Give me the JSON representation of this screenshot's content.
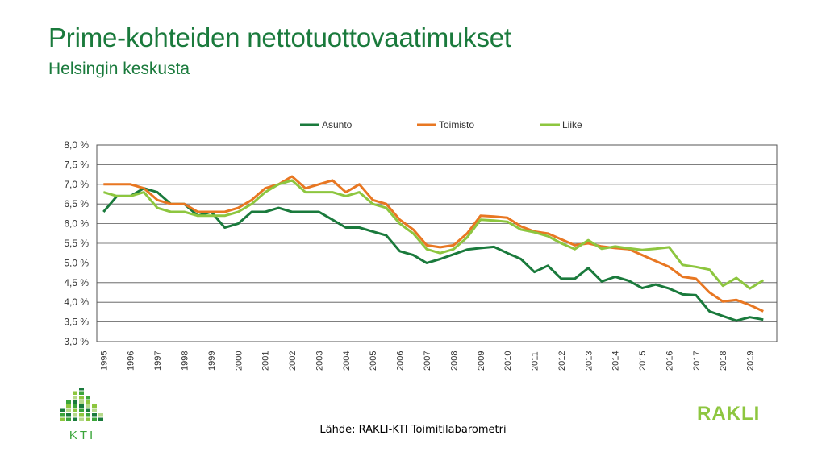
{
  "title": "Prime-kohteiden nettotuottovaatimukset",
  "subtitle": "Helsingin keskusta",
  "source": "Lähde: RAKLI-KTI Toimitilabarometri",
  "logos": {
    "kti": "KTI",
    "rakli": "RAKLI"
  },
  "chart_data": {
    "type": "line",
    "title": "",
    "xlabel": "",
    "ylabel": "",
    "ylim": [
      3.0,
      8.0
    ],
    "yticks": [
      "8,0 %",
      "7,5 %",
      "7,0 %",
      "6,5 %",
      "6,0 %",
      "5,5 %",
      "5,0 %",
      "4,5 %",
      "4,0 %",
      "3,5 %",
      "3,0 %"
    ],
    "x_tick_labels": [
      "1995",
      "1996",
      "1997",
      "1998",
      "1999",
      "2000",
      "2001",
      "2002",
      "2003",
      "2004",
      "2005",
      "2006",
      "2007",
      "2008",
      "2009",
      "2010",
      "2011",
      "2012",
      "2013",
      "2014",
      "2015",
      "2016",
      "2017",
      "2018",
      "2019"
    ],
    "x_start": 1995.0,
    "x_step": 0.5,
    "grid": "horizontal",
    "legend_position": "top",
    "series": [
      {
        "name": "Asunto",
        "color": "#1a7a3c",
        "values": [
          6.3,
          6.7,
          6.7,
          6.9,
          6.8,
          6.5,
          6.5,
          6.2,
          6.3,
          5.9,
          6.0,
          6.3,
          6.3,
          6.4,
          6.3,
          6.3,
          6.3,
          6.1,
          5.9,
          5.9,
          5.8,
          5.7,
          5.3,
          5.2,
          5.0,
          5.1,
          5.22,
          5.34,
          5.38,
          5.41,
          5.25,
          5.1,
          4.77,
          4.93,
          4.6,
          4.6,
          4.87,
          4.53,
          4.65,
          4.55,
          4.36,
          4.45,
          4.35,
          4.2,
          4.18,
          3.77,
          3.65,
          3.53,
          3.62,
          3.56
        ]
      },
      {
        "name": "Toimisto",
        "color": "#e87722",
        "values": [
          7.0,
          7.0,
          7.0,
          6.9,
          6.6,
          6.5,
          6.5,
          6.3,
          6.3,
          6.3,
          6.4,
          6.6,
          6.9,
          7.0,
          7.2,
          6.9,
          7.0,
          7.1,
          6.8,
          7.0,
          6.6,
          6.5,
          6.1,
          5.85,
          5.45,
          5.4,
          5.45,
          5.75,
          6.2,
          6.18,
          6.15,
          5.93,
          5.8,
          5.75,
          5.6,
          5.45,
          5.5,
          5.42,
          5.38,
          5.35,
          5.2,
          5.05,
          4.9,
          4.65,
          4.6,
          4.25,
          4.02,
          4.06,
          3.93,
          3.77
        ]
      },
      {
        "name": "Liike",
        "color": "#8dc63f",
        "values": [
          6.8,
          6.7,
          6.7,
          6.8,
          6.4,
          6.3,
          6.3,
          6.2,
          6.2,
          6.2,
          6.3,
          6.5,
          6.8,
          7.0,
          7.1,
          6.8,
          6.8,
          6.8,
          6.7,
          6.8,
          6.5,
          6.4,
          6.0,
          5.75,
          5.35,
          5.25,
          5.35,
          5.65,
          6.1,
          6.08,
          6.05,
          5.85,
          5.78,
          5.68,
          5.5,
          5.35,
          5.58,
          5.36,
          5.42,
          5.37,
          5.33,
          5.36,
          5.4,
          4.95,
          4.9,
          4.83,
          4.42,
          4.62,
          4.35,
          4.56
        ]
      }
    ]
  }
}
